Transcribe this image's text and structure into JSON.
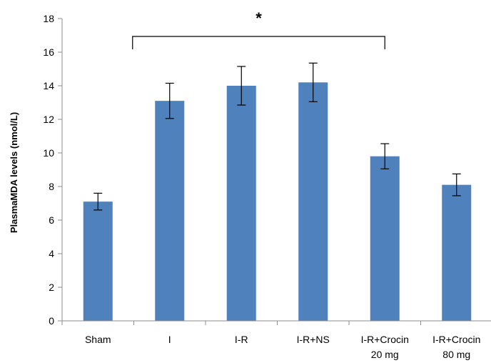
{
  "chart_data": {
    "type": "bar",
    "categories": [
      [
        "Sham"
      ],
      [
        "I"
      ],
      [
        "I-R"
      ],
      [
        "I-R+NS"
      ],
      [
        "I-R+Crocin",
        "20 mg"
      ],
      [
        "I-R+Crocin",
        "80 mg"
      ]
    ],
    "values": [
      7.1,
      13.1,
      14.0,
      14.2,
      9.8,
      8.1
    ],
    "error": [
      0.5,
      1.05,
      1.15,
      1.15,
      0.75,
      0.65
    ],
    "ylabel": "PlasmaMDA levels (nmol/L)",
    "ylim": [
      0,
      18
    ],
    "yticks": [
      0,
      2,
      4,
      6,
      8,
      10,
      12,
      14,
      16,
      18
    ],
    "bar_color": "#4f81bd",
    "significance": {
      "label": "*",
      "from_category": 1,
      "to_category": 4
    }
  }
}
